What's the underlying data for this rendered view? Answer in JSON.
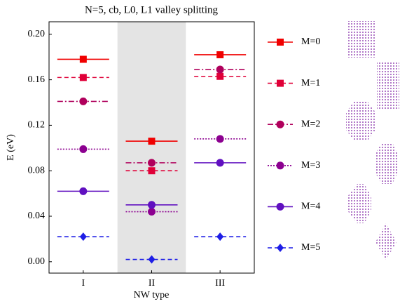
{
  "chart_data": {
    "type": "level",
    "title": "N=5, cb, L0, L1 valley splitting",
    "xlabel": "NW type",
    "ylabel": "E (eV)",
    "categories": [
      "I",
      "II",
      "III"
    ],
    "highlight_category": "II",
    "ylim": [
      -0.01,
      0.211
    ],
    "yticks": [
      {
        "value": 0,
        "label": "0.00"
      },
      0.04,
      0.08,
      0.12,
      0.16,
      {
        "value": 0.2,
        "label": "0.20"
      }
    ],
    "series": [
      {
        "name": "M=0",
        "color": "#f00000",
        "dash": "solid",
        "marker": "square",
        "values": [
          0.178,
          0.106,
          0.182
        ]
      },
      {
        "name": "M=1",
        "color": "#e00038",
        "dash": "dashed",
        "marker": "square",
        "values": [
          0.162,
          0.08,
          0.163
        ]
      },
      {
        "name": "M=2",
        "color": "#b0005c",
        "dash": "dashdot",
        "marker": "circle",
        "values": [
          0.141,
          0.087,
          0.169
        ]
      },
      {
        "name": "M=3",
        "color": "#8c0090",
        "dash": "dotted",
        "marker": "circle",
        "values": [
          0.099,
          0.044,
          0.108
        ]
      },
      {
        "name": "M=4",
        "color": "#6010c0",
        "dash": "solid",
        "marker": "circle",
        "values": [
          0.062,
          0.05,
          0.087
        ]
      },
      {
        "name": "M=5",
        "color": "#1e1ee6",
        "dash": "dashed",
        "marker": "diamond",
        "values": [
          0.022,
          0.002,
          0.022
        ]
      }
    ]
  }
}
